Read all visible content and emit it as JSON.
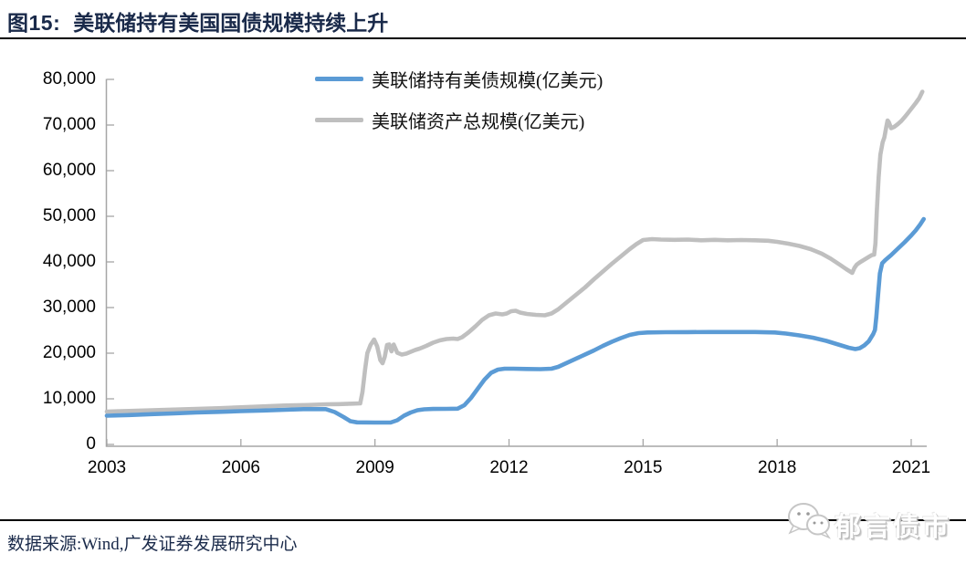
{
  "title": {
    "label": "图15:",
    "text": "美联储持有美国国债规模持续上升"
  },
  "legend": [
    {
      "name": "美联储持有美债规模(亿美元)",
      "color": "#5b9bd5"
    },
    {
      "name": "美联储资产总规模(亿美元)",
      "color": "#bfbfbf"
    }
  ],
  "source": "数据来源:Wind,广发证券发展研究中心",
  "logo": {
    "text": "郁言债市",
    "icon": "wechat-icon"
  },
  "colors": {
    "title_navy": "#1a2a4a",
    "axis_gray": "#a6a6a6",
    "line_blue": "#5b9bd5",
    "line_gray": "#bfbfbf",
    "rule_black": "#000000"
  },
  "chart_data": {
    "type": "line",
    "title": "",
    "xlabel": "",
    "ylabel": "",
    "grid": false,
    "legend_position": "top-center",
    "xlim": [
      2003,
      2021.35
    ],
    "ylim": [
      0,
      80000
    ],
    "x_ticks": [
      2003,
      2006,
      2009,
      2012,
      2015,
      2018,
      2021
    ],
    "y_ticks": [
      0,
      10000,
      20000,
      30000,
      40000,
      50000,
      60000,
      70000,
      80000
    ],
    "y_tick_labels": [
      "0",
      "10,000",
      "20,000",
      "30,000",
      "40,000",
      "50,000",
      "60,000",
      "70,000",
      "80,000"
    ],
    "series": [
      {
        "name": "美联储持有美债规模(亿美元)",
        "color": "#5b9bd5",
        "points": [
          [
            2003.0,
            6300
          ],
          [
            2003.5,
            6450
          ],
          [
            2004.0,
            6650
          ],
          [
            2004.5,
            6800
          ],
          [
            2005.0,
            7000
          ],
          [
            2005.5,
            7150
          ],
          [
            2006.0,
            7300
          ],
          [
            2006.5,
            7450
          ],
          [
            2007.0,
            7600
          ],
          [
            2007.4,
            7750
          ],
          [
            2007.9,
            7750
          ],
          [
            2008.1,
            7100
          ],
          [
            2008.3,
            6000
          ],
          [
            2008.45,
            5100
          ],
          [
            2008.6,
            4850
          ],
          [
            2009.0,
            4800
          ],
          [
            2009.35,
            4800
          ],
          [
            2009.5,
            5300
          ],
          [
            2009.65,
            6300
          ],
          [
            2009.8,
            7000
          ],
          [
            2009.95,
            7500
          ],
          [
            2010.1,
            7700
          ],
          [
            2010.3,
            7780
          ],
          [
            2010.6,
            7800
          ],
          [
            2010.85,
            7850
          ],
          [
            2011.0,
            8600
          ],
          [
            2011.15,
            10200
          ],
          [
            2011.3,
            12200
          ],
          [
            2011.45,
            14200
          ],
          [
            2011.6,
            15700
          ],
          [
            2011.75,
            16400
          ],
          [
            2011.9,
            16600
          ],
          [
            2012.1,
            16600
          ],
          [
            2012.4,
            16550
          ],
          [
            2012.7,
            16500
          ],
          [
            2012.95,
            16600
          ],
          [
            2013.1,
            17000
          ],
          [
            2013.3,
            17900
          ],
          [
            2013.5,
            18800
          ],
          [
            2013.7,
            19700
          ],
          [
            2013.9,
            20600
          ],
          [
            2014.1,
            21600
          ],
          [
            2014.3,
            22500
          ],
          [
            2014.5,
            23300
          ],
          [
            2014.7,
            24000
          ],
          [
            2014.9,
            24400
          ],
          [
            2015.1,
            24550
          ],
          [
            2015.5,
            24600
          ],
          [
            2016.0,
            24620
          ],
          [
            2016.5,
            24650
          ],
          [
            2017.0,
            24650
          ],
          [
            2017.5,
            24650
          ],
          [
            2017.95,
            24550
          ],
          [
            2018.2,
            24300
          ],
          [
            2018.5,
            23900
          ],
          [
            2018.8,
            23400
          ],
          [
            2019.1,
            22700
          ],
          [
            2019.4,
            21800
          ],
          [
            2019.6,
            21200
          ],
          [
            2019.75,
            20900
          ],
          [
            2019.85,
            21100
          ],
          [
            2019.95,
            21700
          ],
          [
            2020.05,
            22600
          ],
          [
            2020.15,
            24200
          ],
          [
            2020.19,
            25100
          ],
          [
            2020.22,
            28000
          ],
          [
            2020.26,
            33000
          ],
          [
            2020.3,
            37500
          ],
          [
            2020.35,
            39700
          ],
          [
            2020.42,
            40400
          ],
          [
            2020.55,
            41500
          ],
          [
            2020.7,
            42900
          ],
          [
            2020.85,
            44300
          ],
          [
            2021.0,
            45800
          ],
          [
            2021.1,
            46900
          ],
          [
            2021.2,
            48200
          ],
          [
            2021.28,
            49400
          ]
        ]
      },
      {
        "name": "美联储资产总规模(亿美元)",
        "color": "#bfbfbf",
        "points": [
          [
            2003.0,
            7200
          ],
          [
            2003.5,
            7350
          ],
          [
            2004.0,
            7500
          ],
          [
            2004.5,
            7650
          ],
          [
            2005.0,
            7800
          ],
          [
            2005.5,
            7950
          ],
          [
            2006.0,
            8150
          ],
          [
            2006.5,
            8350
          ],
          [
            2007.0,
            8550
          ],
          [
            2007.5,
            8650
          ],
          [
            2007.9,
            8800
          ],
          [
            2008.2,
            8850
          ],
          [
            2008.5,
            8950
          ],
          [
            2008.67,
            9000
          ],
          [
            2008.72,
            11500
          ],
          [
            2008.78,
            16500
          ],
          [
            2008.83,
            20000
          ],
          [
            2008.9,
            21800
          ],
          [
            2008.98,
            23000
          ],
          [
            2009.05,
            21500
          ],
          [
            2009.12,
            18500
          ],
          [
            2009.17,
            17800
          ],
          [
            2009.22,
            19200
          ],
          [
            2009.27,
            21800
          ],
          [
            2009.32,
            21900
          ],
          [
            2009.37,
            20400
          ],
          [
            2009.42,
            21900
          ],
          [
            2009.5,
            20100
          ],
          [
            2009.6,
            19700
          ],
          [
            2009.7,
            19900
          ],
          [
            2009.8,
            20300
          ],
          [
            2009.9,
            20700
          ],
          [
            2010.0,
            21000
          ],
          [
            2010.15,
            21600
          ],
          [
            2010.3,
            22300
          ],
          [
            2010.45,
            22800
          ],
          [
            2010.6,
            23100
          ],
          [
            2010.75,
            23200
          ],
          [
            2010.85,
            23100
          ],
          [
            2010.95,
            23500
          ],
          [
            2011.1,
            24600
          ],
          [
            2011.25,
            25900
          ],
          [
            2011.4,
            27300
          ],
          [
            2011.55,
            28300
          ],
          [
            2011.7,
            28700
          ],
          [
            2011.85,
            28500
          ],
          [
            2011.95,
            28700
          ],
          [
            2012.05,
            29200
          ],
          [
            2012.15,
            29300
          ],
          [
            2012.25,
            28900
          ],
          [
            2012.4,
            28600
          ],
          [
            2012.6,
            28400
          ],
          [
            2012.8,
            28300
          ],
          [
            2012.95,
            28700
          ],
          [
            2013.1,
            29600
          ],
          [
            2013.3,
            31200
          ],
          [
            2013.5,
            32800
          ],
          [
            2013.7,
            34400
          ],
          [
            2013.9,
            36200
          ],
          [
            2014.1,
            37900
          ],
          [
            2014.3,
            39600
          ],
          [
            2014.5,
            41200
          ],
          [
            2014.7,
            42800
          ],
          [
            2014.85,
            43900
          ],
          [
            2015.0,
            44800
          ],
          [
            2015.2,
            45000
          ],
          [
            2015.4,
            44900
          ],
          [
            2015.7,
            44850
          ],
          [
            2016.0,
            44900
          ],
          [
            2016.3,
            44750
          ],
          [
            2016.6,
            44850
          ],
          [
            2016.9,
            44750
          ],
          [
            2017.2,
            44800
          ],
          [
            2017.5,
            44750
          ],
          [
            2017.8,
            44650
          ],
          [
            2018.0,
            44400
          ],
          [
            2018.25,
            44000
          ],
          [
            2018.5,
            43500
          ],
          [
            2018.75,
            42800
          ],
          [
            2019.0,
            41800
          ],
          [
            2019.2,
            40700
          ],
          [
            2019.4,
            39400
          ],
          [
            2019.55,
            38400
          ],
          [
            2019.68,
            37600
          ],
          [
            2019.73,
            38700
          ],
          [
            2019.78,
            39400
          ],
          [
            2019.85,
            39900
          ],
          [
            2019.95,
            40500
          ],
          [
            2020.05,
            41100
          ],
          [
            2020.12,
            41500
          ],
          [
            2020.17,
            41600
          ],
          [
            2020.2,
            44000
          ],
          [
            2020.23,
            51000
          ],
          [
            2020.27,
            58500
          ],
          [
            2020.31,
            63500
          ],
          [
            2020.36,
            66200
          ],
          [
            2020.4,
            67300
          ],
          [
            2020.44,
            69500
          ],
          [
            2020.47,
            71000
          ],
          [
            2020.5,
            70600
          ],
          [
            2020.55,
            69300
          ],
          [
            2020.62,
            69600
          ],
          [
            2020.7,
            70200
          ],
          [
            2020.78,
            70900
          ],
          [
            2020.86,
            71800
          ],
          [
            2020.94,
            72800
          ],
          [
            2021.02,
            73800
          ],
          [
            2021.1,
            74800
          ],
          [
            2021.18,
            75900
          ],
          [
            2021.25,
            77300
          ]
        ]
      }
    ]
  }
}
